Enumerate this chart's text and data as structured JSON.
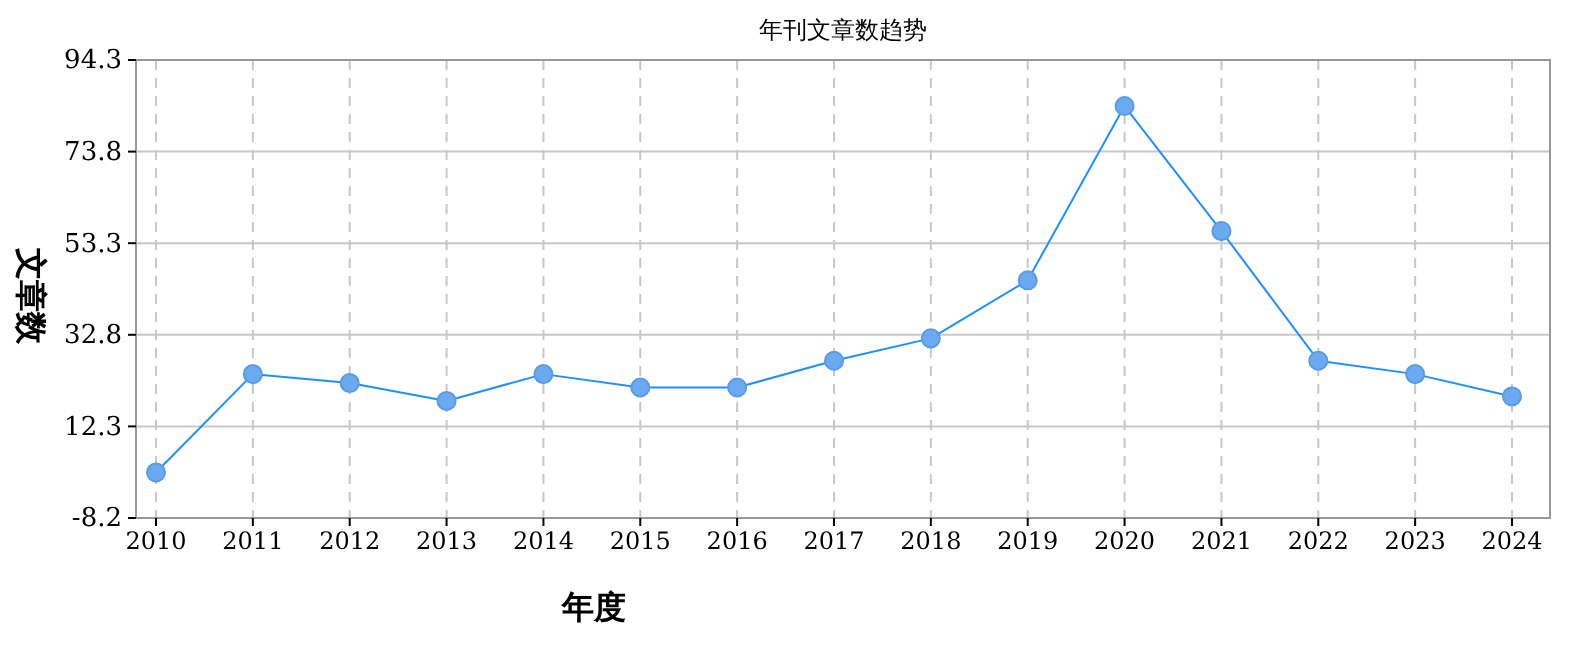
{
  "chart_data": {
    "type": "line",
    "title": "年刊文章数趋势",
    "xlabel": "年度",
    "ylabel": "文章数",
    "categories": [
      "2010",
      "2011",
      "2012",
      "2013",
      "2014",
      "2015",
      "2016",
      "2017",
      "2018",
      "2019",
      "2020",
      "2021",
      "2022",
      "2023",
      "2024"
    ],
    "series": [
      {
        "color": "#1e90ff",
        "values": [
          2,
          24,
          22,
          18,
          24,
          21,
          21,
          27,
          32,
          45,
          84,
          56,
          27,
          24,
          19
        ]
      }
    ],
    "ylim": [
      -8.2,
      94.3
    ],
    "yticks": [
      -8.2,
      12.3,
      32.8,
      53.3,
      73.8,
      94.3
    ],
    "grid": true,
    "marker": "circle",
    "line_style": "solid"
  }
}
